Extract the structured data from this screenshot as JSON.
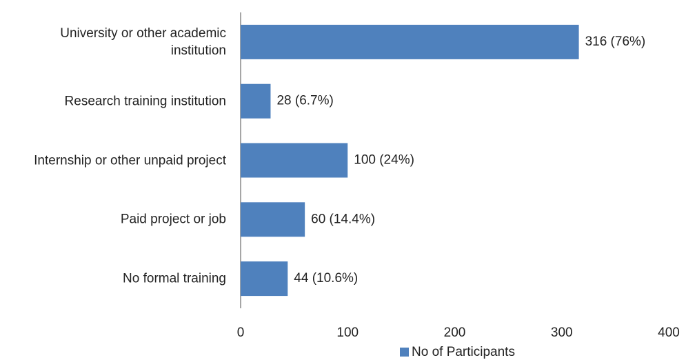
{
  "chart_data": {
    "type": "bar",
    "orientation": "horizontal",
    "categories": [
      "University or other academic institution",
      "Research training institution",
      "Internship or other unpaid project",
      "Paid project or job",
      "No formal training"
    ],
    "series": [
      {
        "name": "No of Participants",
        "color": "#4f81bd",
        "values": [
          316,
          28,
          100,
          60,
          44
        ],
        "value_labels": [
          "316 (76%)",
          "28 (6.7%)",
          "100 (24%)",
          "60 (14.4%)",
          "44 (10.6%)"
        ]
      }
    ],
    "xlim": [
      0,
      400
    ],
    "xticks": [
      0,
      100,
      200,
      300,
      400
    ],
    "grid": false,
    "legend": "bottom"
  }
}
